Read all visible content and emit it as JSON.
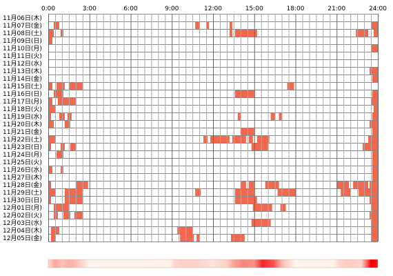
{
  "chart_data": {
    "type": "heatmap",
    "title": "",
    "x_ticks": [
      "0:00",
      "3:00",
      "6:00",
      "9:00",
      "12:00",
      "15:00",
      "18:00",
      "21:00",
      "24:00"
    ],
    "x_range_hours": [
      0,
      24
    ],
    "grid": true,
    "busy_color": "#f2684e",
    "grid_color": "#888888",
    "rows": [
      {
        "date": "11月06日(木)",
        "intervals": []
      },
      {
        "date": "11月07日(金)",
        "intervals": [
          [
            0.4,
            0.8
          ],
          [
            10.7,
            11.0
          ],
          [
            11.5,
            11.7
          ],
          [
            13.2,
            13.4
          ],
          [
            23.5,
            24
          ]
        ]
      },
      {
        "date": "11月08日(土)",
        "intervals": [
          [
            0,
            0.4
          ],
          [
            0.9,
            1.1
          ],
          [
            13.2,
            13.4
          ],
          [
            13.6,
            15.2
          ],
          [
            22.4,
            23.3
          ],
          [
            23.7,
            24
          ]
        ]
      },
      {
        "date": "11月09日(日)",
        "intervals": [
          [
            0,
            0.3
          ]
        ]
      },
      {
        "date": "11月10日(月)",
        "intervals": [
          [
            23.5,
            24
          ]
        ]
      },
      {
        "date": "11月11日(火)",
        "intervals": []
      },
      {
        "date": "11月12日(水)",
        "intervals": []
      },
      {
        "date": "11月13日(木)",
        "intervals": [
          [
            23.4,
            24
          ]
        ]
      },
      {
        "date": "11月14日(金)",
        "intervals": [
          [
            23.6,
            24
          ]
        ]
      },
      {
        "date": "11月15日(土)",
        "intervals": [
          [
            0,
            0.3
          ],
          [
            0.6,
            1.2
          ],
          [
            1.5,
            2.5
          ],
          [
            17.4,
            17.9
          ]
        ]
      },
      {
        "date": "11月16日(日)",
        "intervals": [
          [
            0.4,
            1.1
          ],
          [
            13.6,
            15.0
          ],
          [
            23.6,
            24
          ]
        ]
      },
      {
        "date": "11月17日(月)",
        "intervals": [
          [
            0,
            0.3
          ],
          [
            0.7,
            2.0
          ],
          [
            23.5,
            24
          ]
        ]
      },
      {
        "date": "11月18日(火)",
        "intervals": [
          [
            0,
            0.5
          ],
          [
            23.7,
            24
          ]
        ]
      },
      {
        "date": "11月19日(水)",
        "intervals": [
          [
            0,
            0.2
          ],
          [
            0.8,
            1.2
          ],
          [
            1.4,
            1.7
          ],
          [
            13.8,
            14.0
          ],
          [
            16.2,
            16.5
          ],
          [
            16.8,
            17.0
          ],
          [
            23.6,
            24
          ]
        ]
      },
      {
        "date": "11月20日(木)",
        "intervals": [
          [
            0,
            0.4
          ],
          [
            1.2,
            1.6
          ],
          [
            23.4,
            24
          ]
        ]
      },
      {
        "date": "11月21日(金)",
        "intervals": [
          [
            14.0,
            15.0
          ],
          [
            23.6,
            24
          ]
        ]
      },
      {
        "date": "11月22日(土)",
        "intervals": [
          [
            0,
            0.5
          ],
          [
            11.3,
            11.6
          ],
          [
            11.8,
            13.2
          ],
          [
            13.4,
            14.4
          ],
          [
            14.6,
            14.9
          ],
          [
            15.2,
            16.1
          ],
          [
            23.3,
            24
          ]
        ]
      },
      {
        "date": "11月23日(日)",
        "intervals": [
          [
            0,
            0.2
          ],
          [
            0.9,
            1.2
          ],
          [
            1.6,
            2.0
          ],
          [
            14.8,
            16.0
          ],
          [
            22.9,
            24
          ]
        ]
      },
      {
        "date": "11月24日(月)",
        "intervals": [
          [
            0.6,
            1.1
          ],
          [
            23.6,
            24
          ]
        ]
      },
      {
        "date": "11月25日(火)",
        "intervals": [
          [
            23.6,
            24
          ]
        ]
      },
      {
        "date": "11月26日(水)",
        "intervals": [
          [
            0,
            0.3
          ],
          [
            0.9,
            1.1
          ],
          [
            23.6,
            24
          ]
        ]
      },
      {
        "date": "11月27日(木)",
        "intervals": [
          [
            23.6,
            24
          ]
        ]
      },
      {
        "date": "11月28日(金)",
        "intervals": [
          [
            0,
            0.2
          ],
          [
            2.0,
            2.9
          ],
          [
            14.0,
            14.4
          ],
          [
            14.6,
            15.0
          ],
          [
            15.8,
            16.8
          ],
          [
            21.0,
            21.9
          ],
          [
            22.2,
            23.3
          ],
          [
            23.4,
            24
          ]
        ]
      },
      {
        "date": "11月29日(土)",
        "intervals": [
          [
            0,
            0.5
          ],
          [
            1.2,
            2.5
          ],
          [
            10.7,
            11.1
          ],
          [
            13.6,
            15.0
          ],
          [
            16.7,
            18.0
          ],
          [
            21.3,
            22.0
          ],
          [
            22.6,
            24
          ]
        ]
      },
      {
        "date": "11月30日(日)",
        "intervals": [
          [
            0,
            0.2
          ],
          [
            1.2,
            2.5
          ],
          [
            13.6,
            15.2
          ],
          [
            23.4,
            24
          ]
        ]
      },
      {
        "date": "12月01日(月)",
        "intervals": [
          [
            0.4,
            1.5
          ],
          [
            14.9,
            16.3
          ],
          [
            16.9,
            17.3
          ],
          [
            23.5,
            24
          ]
        ]
      },
      {
        "date": "12月02日(火)",
        "intervals": [
          [
            0.4,
            0.7
          ],
          [
            1.1,
            1.6
          ],
          [
            1.9,
            2.5
          ],
          [
            23.4,
            24
          ]
        ]
      },
      {
        "date": "12月03日(水)",
        "intervals": [
          [
            14.8,
            16.2
          ],
          [
            23.5,
            24
          ]
        ]
      },
      {
        "date": "12月04日(木)",
        "intervals": [
          [
            0.2,
            0.8
          ],
          [
            9.4,
            10.5
          ],
          [
            23.5,
            24
          ]
        ]
      },
      {
        "date": "12月05日(金)",
        "intervals": [
          [
            0.2,
            0.5
          ],
          [
            9.6,
            10.6
          ],
          [
            10.8,
            11.0
          ],
          [
            13.3,
            14.3
          ],
          [
            23.5,
            24
          ]
        ]
      }
    ],
    "summary_strip": {
      "stops": [
        [
          0,
          "#ffd8d0"
        ],
        [
          0.5,
          "#fca598"
        ],
        [
          1.0,
          "#ffc2b6"
        ],
        [
          1.5,
          "#fbb2a4"
        ],
        [
          2.0,
          "#fdbcae"
        ],
        [
          2.5,
          "#ffd6cc"
        ],
        [
          3.0,
          "#fff2ee"
        ],
        [
          8.9,
          "#fff0ea"
        ],
        [
          9.2,
          "#ffd6cc"
        ],
        [
          10.0,
          "#ffcfc3"
        ],
        [
          11.0,
          "#ffd2c8"
        ],
        [
          12.0,
          "#ffe2d8"
        ],
        [
          13.0,
          "#ffd2c8"
        ],
        [
          13.5,
          "#fca598"
        ],
        [
          14.2,
          "#f8857a"
        ],
        [
          15.0,
          "#f7938a"
        ],
        [
          15.6,
          "#f02828"
        ],
        [
          16.4,
          "#ff5050"
        ],
        [
          17.0,
          "#ffb8aa"
        ],
        [
          17.5,
          "#ffd8d0"
        ],
        [
          18.0,
          "#fff3ee"
        ],
        [
          20.8,
          "#fff0ea"
        ],
        [
          21.2,
          "#ffd6cc"
        ],
        [
          22.0,
          "#ffcbbf"
        ],
        [
          22.8,
          "#ffd8d0"
        ],
        [
          23.2,
          "#ff6060"
        ],
        [
          23.5,
          "#f00000"
        ],
        [
          24.0,
          "#ff1010"
        ]
      ]
    }
  }
}
